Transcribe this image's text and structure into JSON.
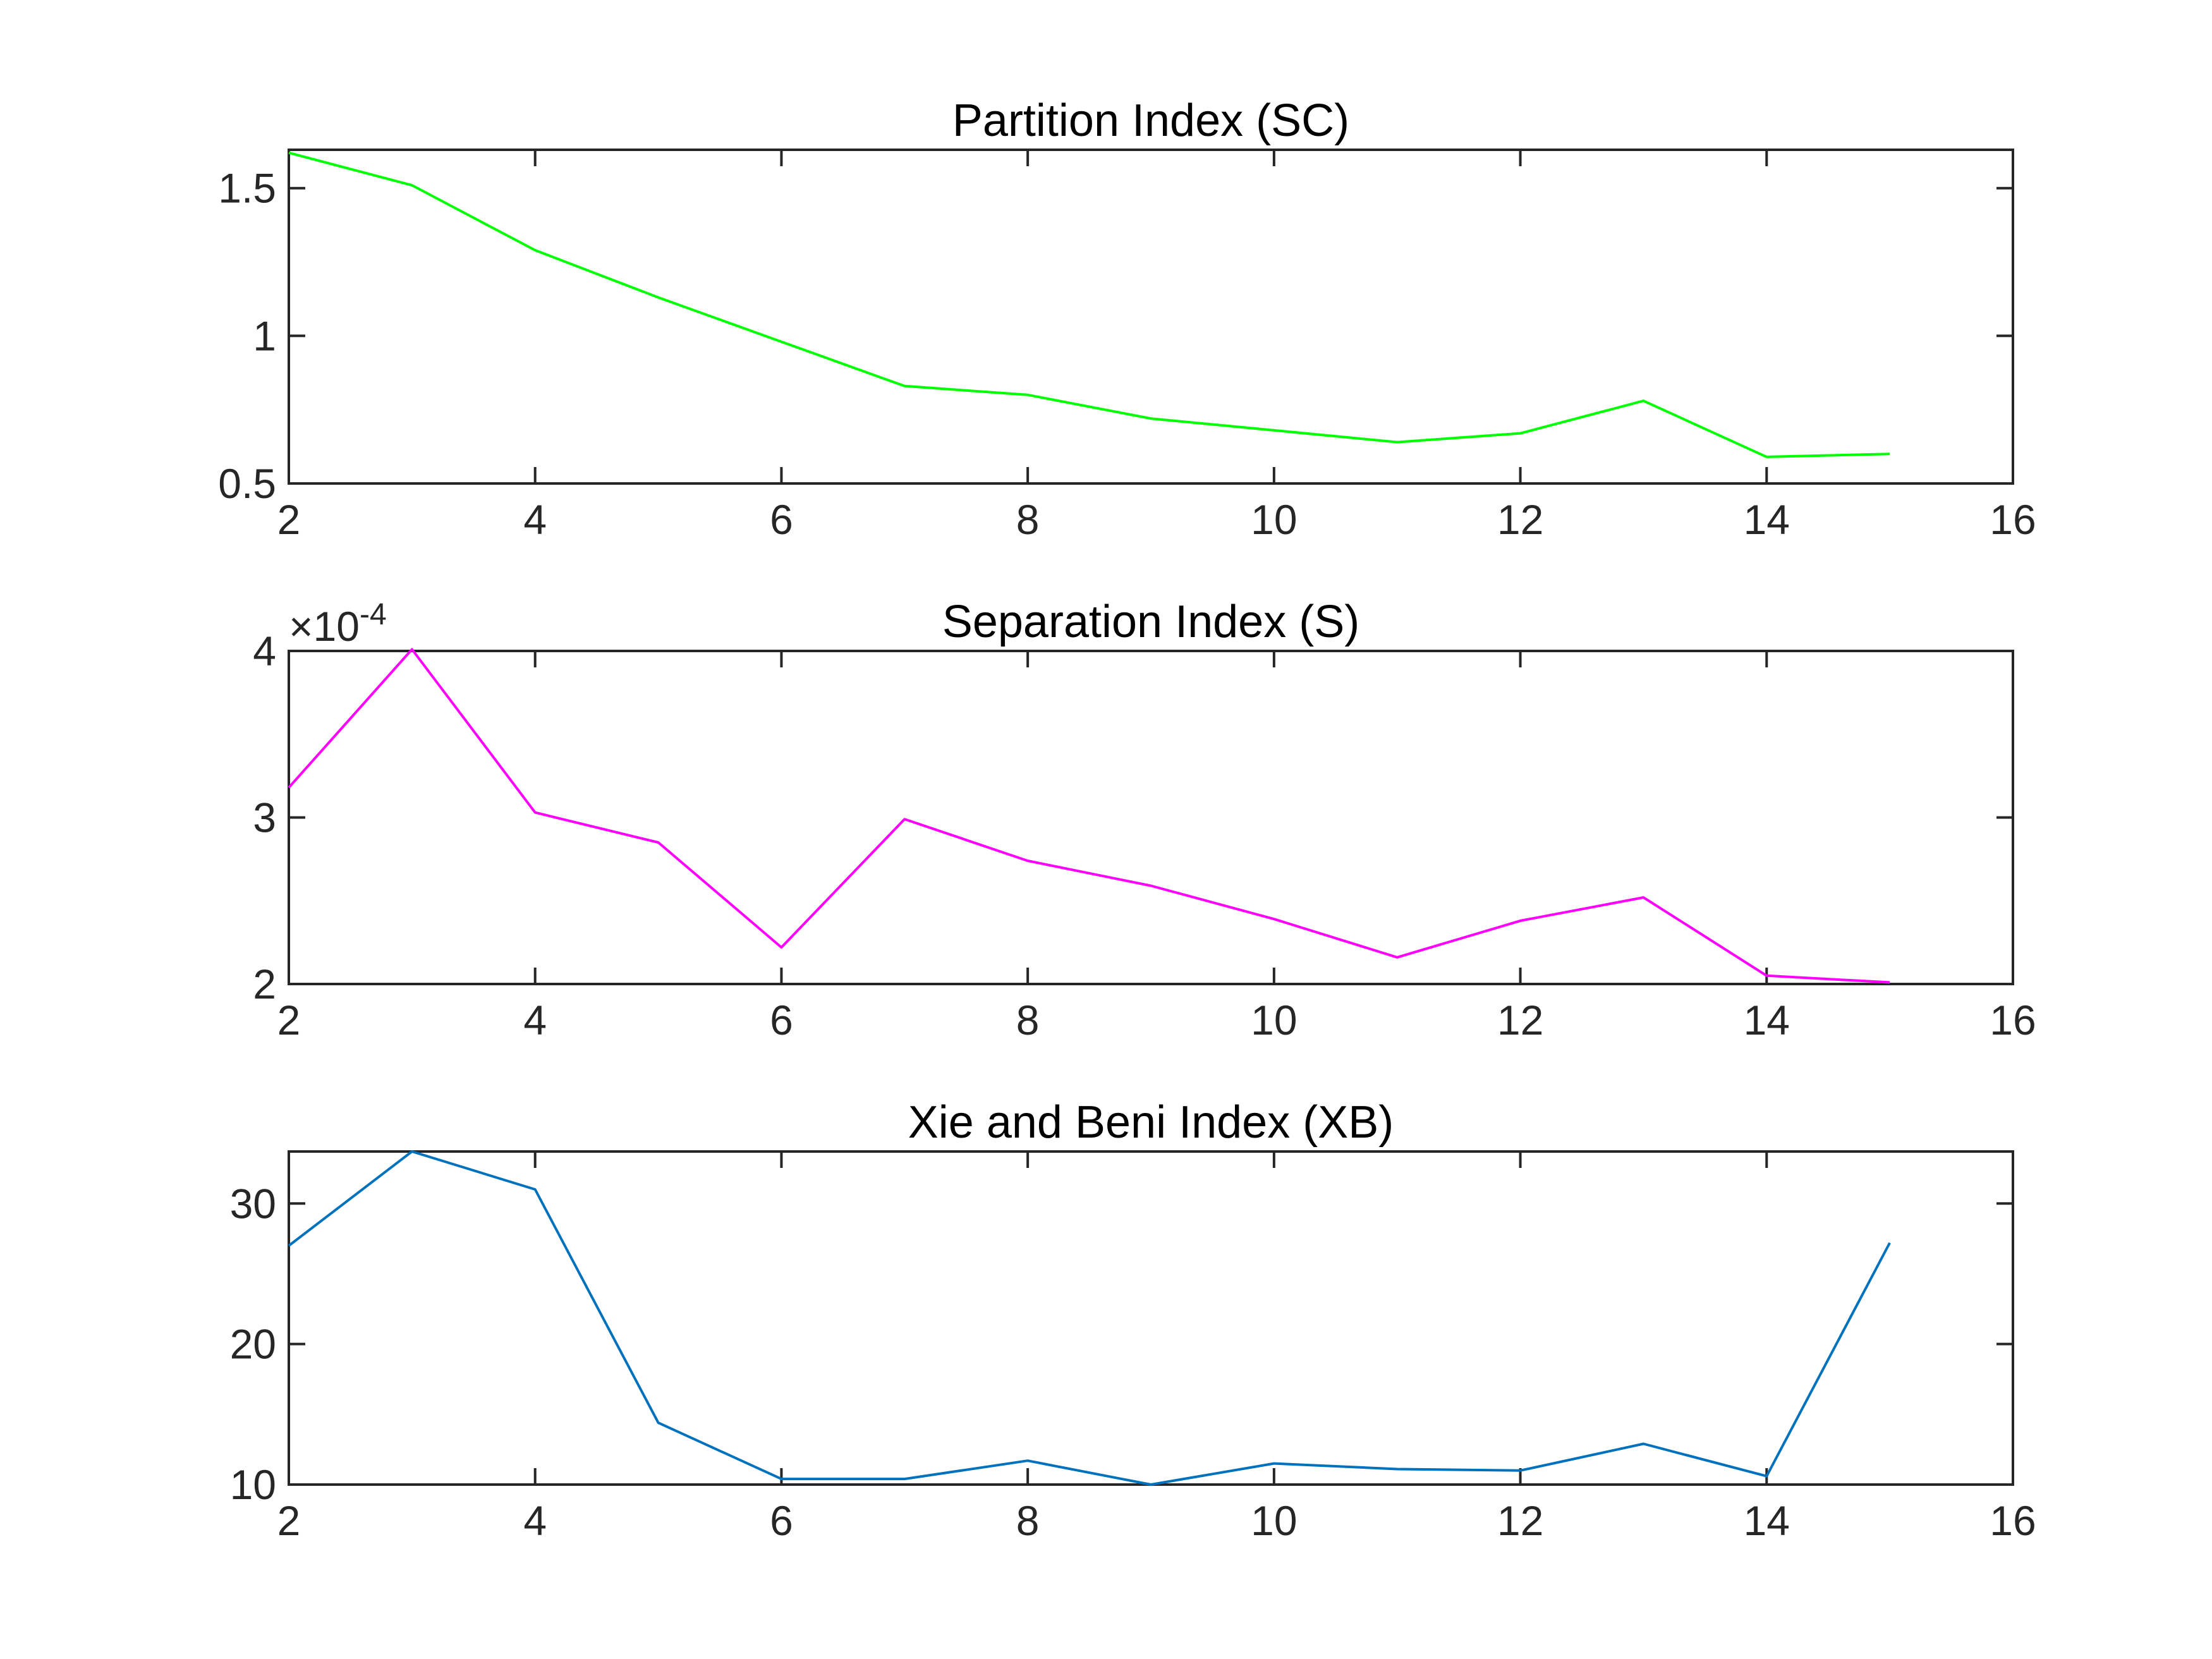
{
  "chart_data": [
    {
      "type": "line",
      "title": "Partition Index (SC)",
      "xlabel": "",
      "ylabel": "",
      "xlim": [
        2,
        16
      ],
      "ylim": [
        0.5,
        1.63
      ],
      "xticks": [
        2,
        4,
        6,
        8,
        10,
        12,
        14,
        16
      ],
      "xtick_labels": [
        "2",
        "4",
        "6",
        "8",
        "10",
        "12",
        "14",
        "16"
      ],
      "yticks": [
        0.5,
        1,
        1.5
      ],
      "ytick_labels": [
        "0.5",
        "1",
        "1.5"
      ],
      "exponent_label": "",
      "grid": false,
      "color": "#00ff00",
      "series": [
        {
          "name": "",
          "x": [
            2,
            3,
            4,
            5,
            6,
            7,
            8,
            9,
            10,
            11,
            12,
            13,
            14,
            15
          ],
          "values": [
            1.62,
            1.51,
            1.29,
            1.13,
            0.98,
            0.83,
            0.8,
            0.72,
            0.68,
            0.64,
            0.67,
            0.78,
            0.59,
            0.6
          ]
        }
      ]
    },
    {
      "type": "line",
      "title": "Separation Index (S)",
      "xlabel": "",
      "ylabel": "",
      "xlim": [
        2,
        16
      ],
      "ylim": [
        2,
        4
      ],
      "xticks": [
        2,
        4,
        6,
        8,
        10,
        12,
        14,
        16
      ],
      "xtick_labels": [
        "2",
        "4",
        "6",
        "8",
        "10",
        "12",
        "14",
        "16"
      ],
      "yticks": [
        2,
        3,
        4
      ],
      "ytick_labels": [
        "2",
        "3",
        "4"
      ],
      "exponent_label": "×10",
      "exponent_power": "-4",
      "grid": false,
      "color": "#ff00ff",
      "series": [
        {
          "name": "",
          "x": [
            2,
            3,
            4,
            5,
            6,
            7,
            8,
            9,
            10,
            11,
            12,
            13,
            14,
            15
          ],
          "values": [
            3.18,
            4.01,
            3.03,
            2.85,
            2.22,
            2.99,
            2.74,
            2.59,
            2.39,
            2.16,
            2.38,
            2.52,
            2.05,
            2.01
          ]
        }
      ]
    },
    {
      "type": "line",
      "title": "Xie and Beni Index (XB)",
      "xlabel": "",
      "ylabel": "",
      "xlim": [
        2,
        16
      ],
      "ylim": [
        10,
        33.7
      ],
      "xticks": [
        2,
        4,
        6,
        8,
        10,
        12,
        14,
        16
      ],
      "xtick_labels": [
        "2",
        "4",
        "6",
        "8",
        "10",
        "12",
        "14",
        "16"
      ],
      "yticks": [
        10,
        20,
        30
      ],
      "ytick_labels": [
        "10",
        "20",
        "30"
      ],
      "exponent_label": "",
      "grid": false,
      "color": "#0072bd",
      "series": [
        {
          "name": "",
          "x": [
            2,
            3,
            4,
            5,
            6,
            7,
            8,
            9,
            10,
            11,
            12,
            13,
            14,
            15
          ],
          "values": [
            27.0,
            33.7,
            31.0,
            14.4,
            10.4,
            10.4,
            11.7,
            10.0,
            11.5,
            11.1,
            11.0,
            12.9,
            10.6,
            27.2
          ]
        }
      ]
    }
  ]
}
